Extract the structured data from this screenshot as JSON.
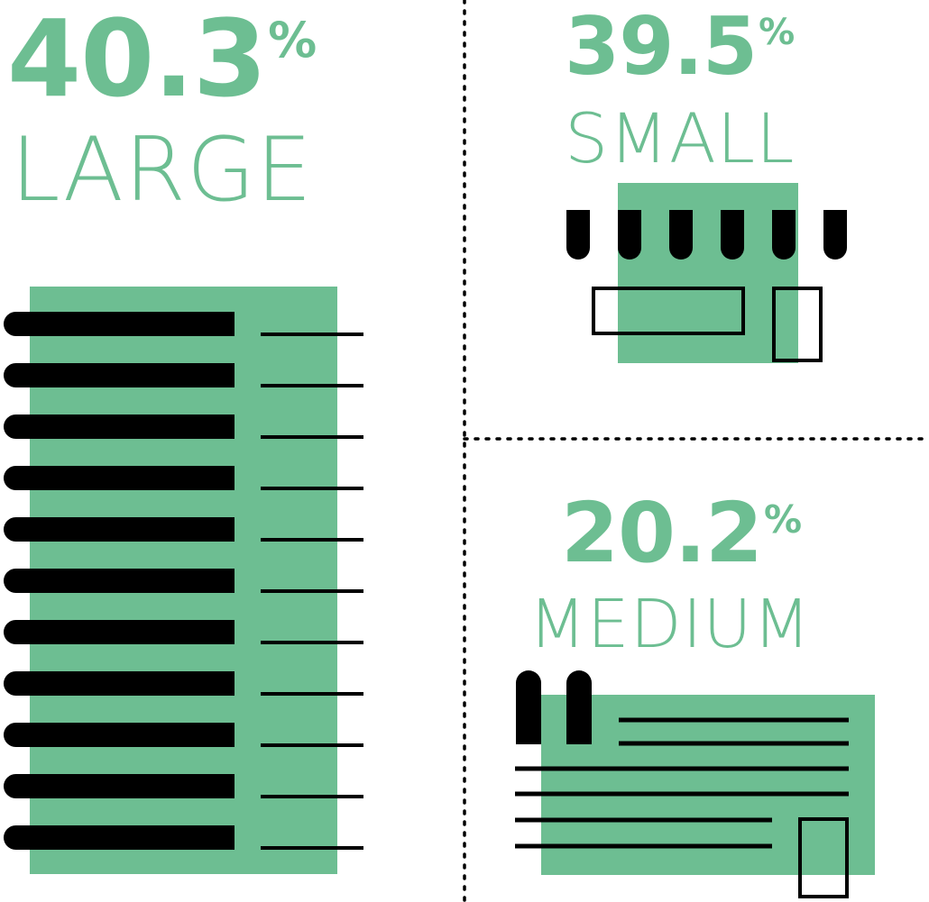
{
  "segments": [
    {
      "percent": "40.3",
      "sign": "%",
      "label": "LARGE"
    },
    {
      "percent": "39.5",
      "sign": "%",
      "label": "SMALL"
    },
    {
      "percent": "20.2",
      "sign": "%",
      "label": "MEDIUM"
    }
  ],
  "colors": {
    "accent": "#6dbe92",
    "ink": "#000000",
    "background": "#ffffff"
  },
  "icons": {
    "large": "large-building-icon",
    "small": "small-storefront-icon",
    "medium": "medium-building-icon"
  }
}
